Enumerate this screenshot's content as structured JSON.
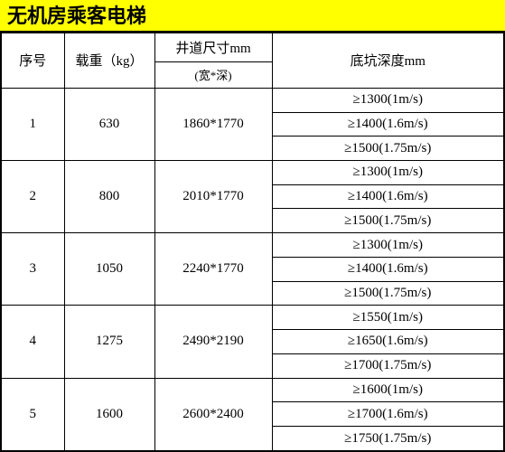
{
  "title": "无机房乘客电梯",
  "headers": {
    "seq": "序号",
    "load": "载重（kg）",
    "shaft": "井道尺寸mm",
    "shaft_sub": "(宽*深)",
    "pit": "底坑深度mm"
  },
  "styling": {
    "title_bg": "#ffff00",
    "title_color": "#000000",
    "title_fontsize": 22,
    "border_color": "#000000",
    "body_fontsize": 15,
    "background": "#ffffff",
    "mirrored": true
  },
  "rows": [
    {
      "seq": "1",
      "load": "630",
      "shaft": "1860*1770",
      "pits": [
        "≥1300(1m/s)",
        "≥1400(1.6m/s)",
        "≥1500(1.75m/s)"
      ]
    },
    {
      "seq": "2",
      "load": "800",
      "shaft": "2010*1770",
      "pits": [
        "≥1300(1m/s)",
        "≥1400(1.6m/s)",
        "≥1500(1.75m/s)"
      ]
    },
    {
      "seq": "3",
      "load": "1050",
      "shaft": "2240*1770",
      "pits": [
        "≥1300(1m/s)",
        "≥1400(1.6m/s)",
        "≥1500(1.75m/s)"
      ]
    },
    {
      "seq": "4",
      "load": "1275",
      "shaft": "2490*2190",
      "pits": [
        "≥1550(1m/s)",
        "≥1650(1.6m/s)",
        "≥1700(1.75m/s)"
      ]
    },
    {
      "seq": "5",
      "load": "1600",
      "shaft": "2600*2400",
      "pits": [
        "≥1600(1m/s)",
        "≥1700(1.6m/s)",
        "≥1750(1.75m/s)"
      ]
    }
  ]
}
